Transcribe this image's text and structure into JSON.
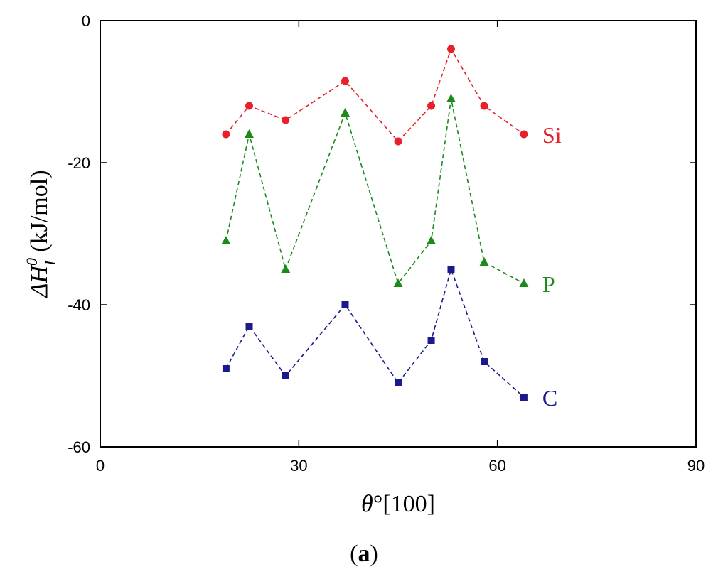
{
  "chart_data": {
    "type": "line",
    "xlabel_symbol": "θ",
    "xlabel_rest": "°[100]",
    "ylabel_prefix": "ΔH",
    "ylabel_sup": "0",
    "ylabel_sub": "I",
    "ylabel_unit": "(kJ/mol)",
    "xlim": [
      0,
      90
    ],
    "ylim": [
      -60,
      0
    ],
    "xticks": [
      0,
      30,
      60,
      90
    ],
    "yticks": [
      0,
      -20,
      -40,
      -60
    ],
    "grid": false,
    "caption_open": "(",
    "caption_letter": "a",
    "caption_close": ")",
    "series": [
      {
        "name": "Si",
        "color": "#e8202a",
        "marker": "circle",
        "x": [
          19,
          22.5,
          28,
          37,
          45,
          50,
          53,
          58,
          64
        ],
        "y": [
          -16,
          -12,
          -14,
          -8.5,
          -17,
          -12,
          -4,
          -12,
          -16
        ]
      },
      {
        "name": "P",
        "color": "#1a8a1a",
        "marker": "triangle",
        "x": [
          19,
          22.5,
          28,
          37,
          45,
          50,
          53,
          58,
          64
        ],
        "y": [
          -31,
          -16,
          -35,
          -13,
          -37,
          -31,
          -11,
          -34,
          -37
        ]
      },
      {
        "name": "C",
        "color": "#1a1a8c",
        "marker": "square",
        "x": [
          19,
          22.5,
          28,
          37,
          45,
          50,
          53,
          58,
          64
        ],
        "y": [
          -49,
          -43,
          -50,
          -40,
          -51,
          -45,
          -35,
          -48,
          -53
        ]
      }
    ]
  }
}
